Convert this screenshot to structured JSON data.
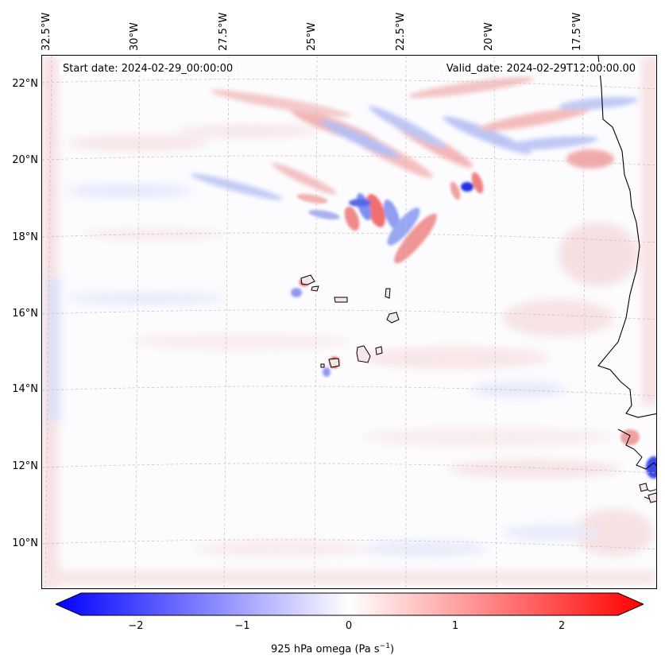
{
  "map": {
    "lon_labels": [
      "32.5°W",
      "30°W",
      "27.5°W",
      "25°W",
      "22.5°W",
      "20°W",
      "17.5°W"
    ],
    "lat_labels": [
      "22°N",
      "20°N",
      "18°N",
      "16°N",
      "14°N",
      "12°N",
      "10°N"
    ],
    "start_date": "Start date: 2024-02-29_00:00:00",
    "valid_date": "Valid_date: 2024-02-29T12:00:00.00",
    "field": "925 hPa omega",
    "colors": {
      "negative": "#0000ff",
      "positive": "#ff0000",
      "zero": "#ffffff"
    }
  },
  "colorbar": {
    "ticks": [
      "−2",
      "−1",
      "0",
      "1",
      "2"
    ],
    "tick_values": [
      -2,
      -1,
      0,
      1,
      2
    ],
    "range": [
      -2.6,
      2.6
    ],
    "label_main": "925 hPa omega (Pa s",
    "label_sup": "−1",
    "label_end": ")"
  }
}
